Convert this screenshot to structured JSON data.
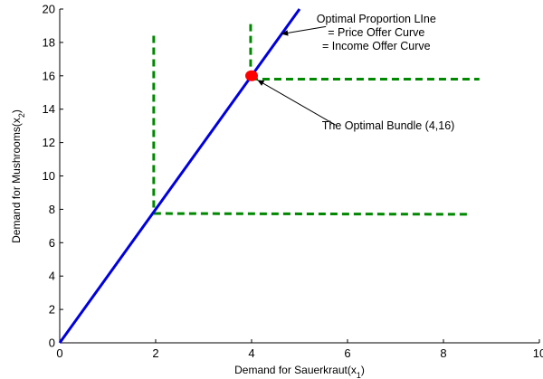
{
  "chart_data": {
    "type": "line",
    "title": "",
    "xlabel": "Demand for Sauerkraut(x",
    "xlabel_sub": "1",
    "xlabel_end": ")",
    "ylabel": "Demand for Mushrooms(x",
    "ylabel_sub": "2",
    "ylabel_end": ")",
    "xlim": [
      0,
      10
    ],
    "ylim": [
      0,
      20
    ],
    "xticks": [
      0,
      2,
      4,
      6,
      8,
      10
    ],
    "yticks": [
      0,
      2,
      4,
      6,
      8,
      10,
      12,
      14,
      16,
      18,
      20
    ],
    "grid": false,
    "series": [
      {
        "role": "optimal-proportion-line",
        "color": "#0000dd",
        "style": "solid",
        "points": [
          [
            0,
            0
          ],
          [
            5,
            20
          ]
        ]
      }
    ],
    "indifference_curves": [
      {
        "color": "#008800",
        "style": "dashed",
        "segments": [
          [
            [
              1.96,
              18.4
            ],
            [
              1.96,
              7.75
            ]
          ],
          [
            [
              1.96,
              7.75
            ],
            [
              8.5,
              7.7
            ]
          ]
        ]
      },
      {
        "color": "#008800",
        "style": "dashed",
        "segments": [
          [
            [
              3.98,
              19.1
            ],
            [
              3.98,
              15.8
            ]
          ],
          [
            [
              3.98,
              15.8
            ],
            [
              8.75,
              15.8
            ]
          ]
        ]
      }
    ],
    "optimal_point": {
      "x": 4,
      "y": 16,
      "color": "#ff0000"
    },
    "annotations": [
      {
        "lines": [
          "Optimal Proportion LIne",
          "= Price Offer Curve",
          "= Income Offer Curve"
        ],
        "anchor": [
          6.6,
          19.2
        ],
        "arrow_from": [
          5.55,
          18.95
        ],
        "arrow_to": [
          4.62,
          18.5
        ]
      },
      {
        "lines": [
          "The Optimal Bundle (4,16)"
        ],
        "anchor": [
          6.85,
          12.8
        ],
        "arrow_from": [
          5.75,
          13.05
        ],
        "arrow_to": [
          4.12,
          15.75
        ]
      }
    ]
  }
}
